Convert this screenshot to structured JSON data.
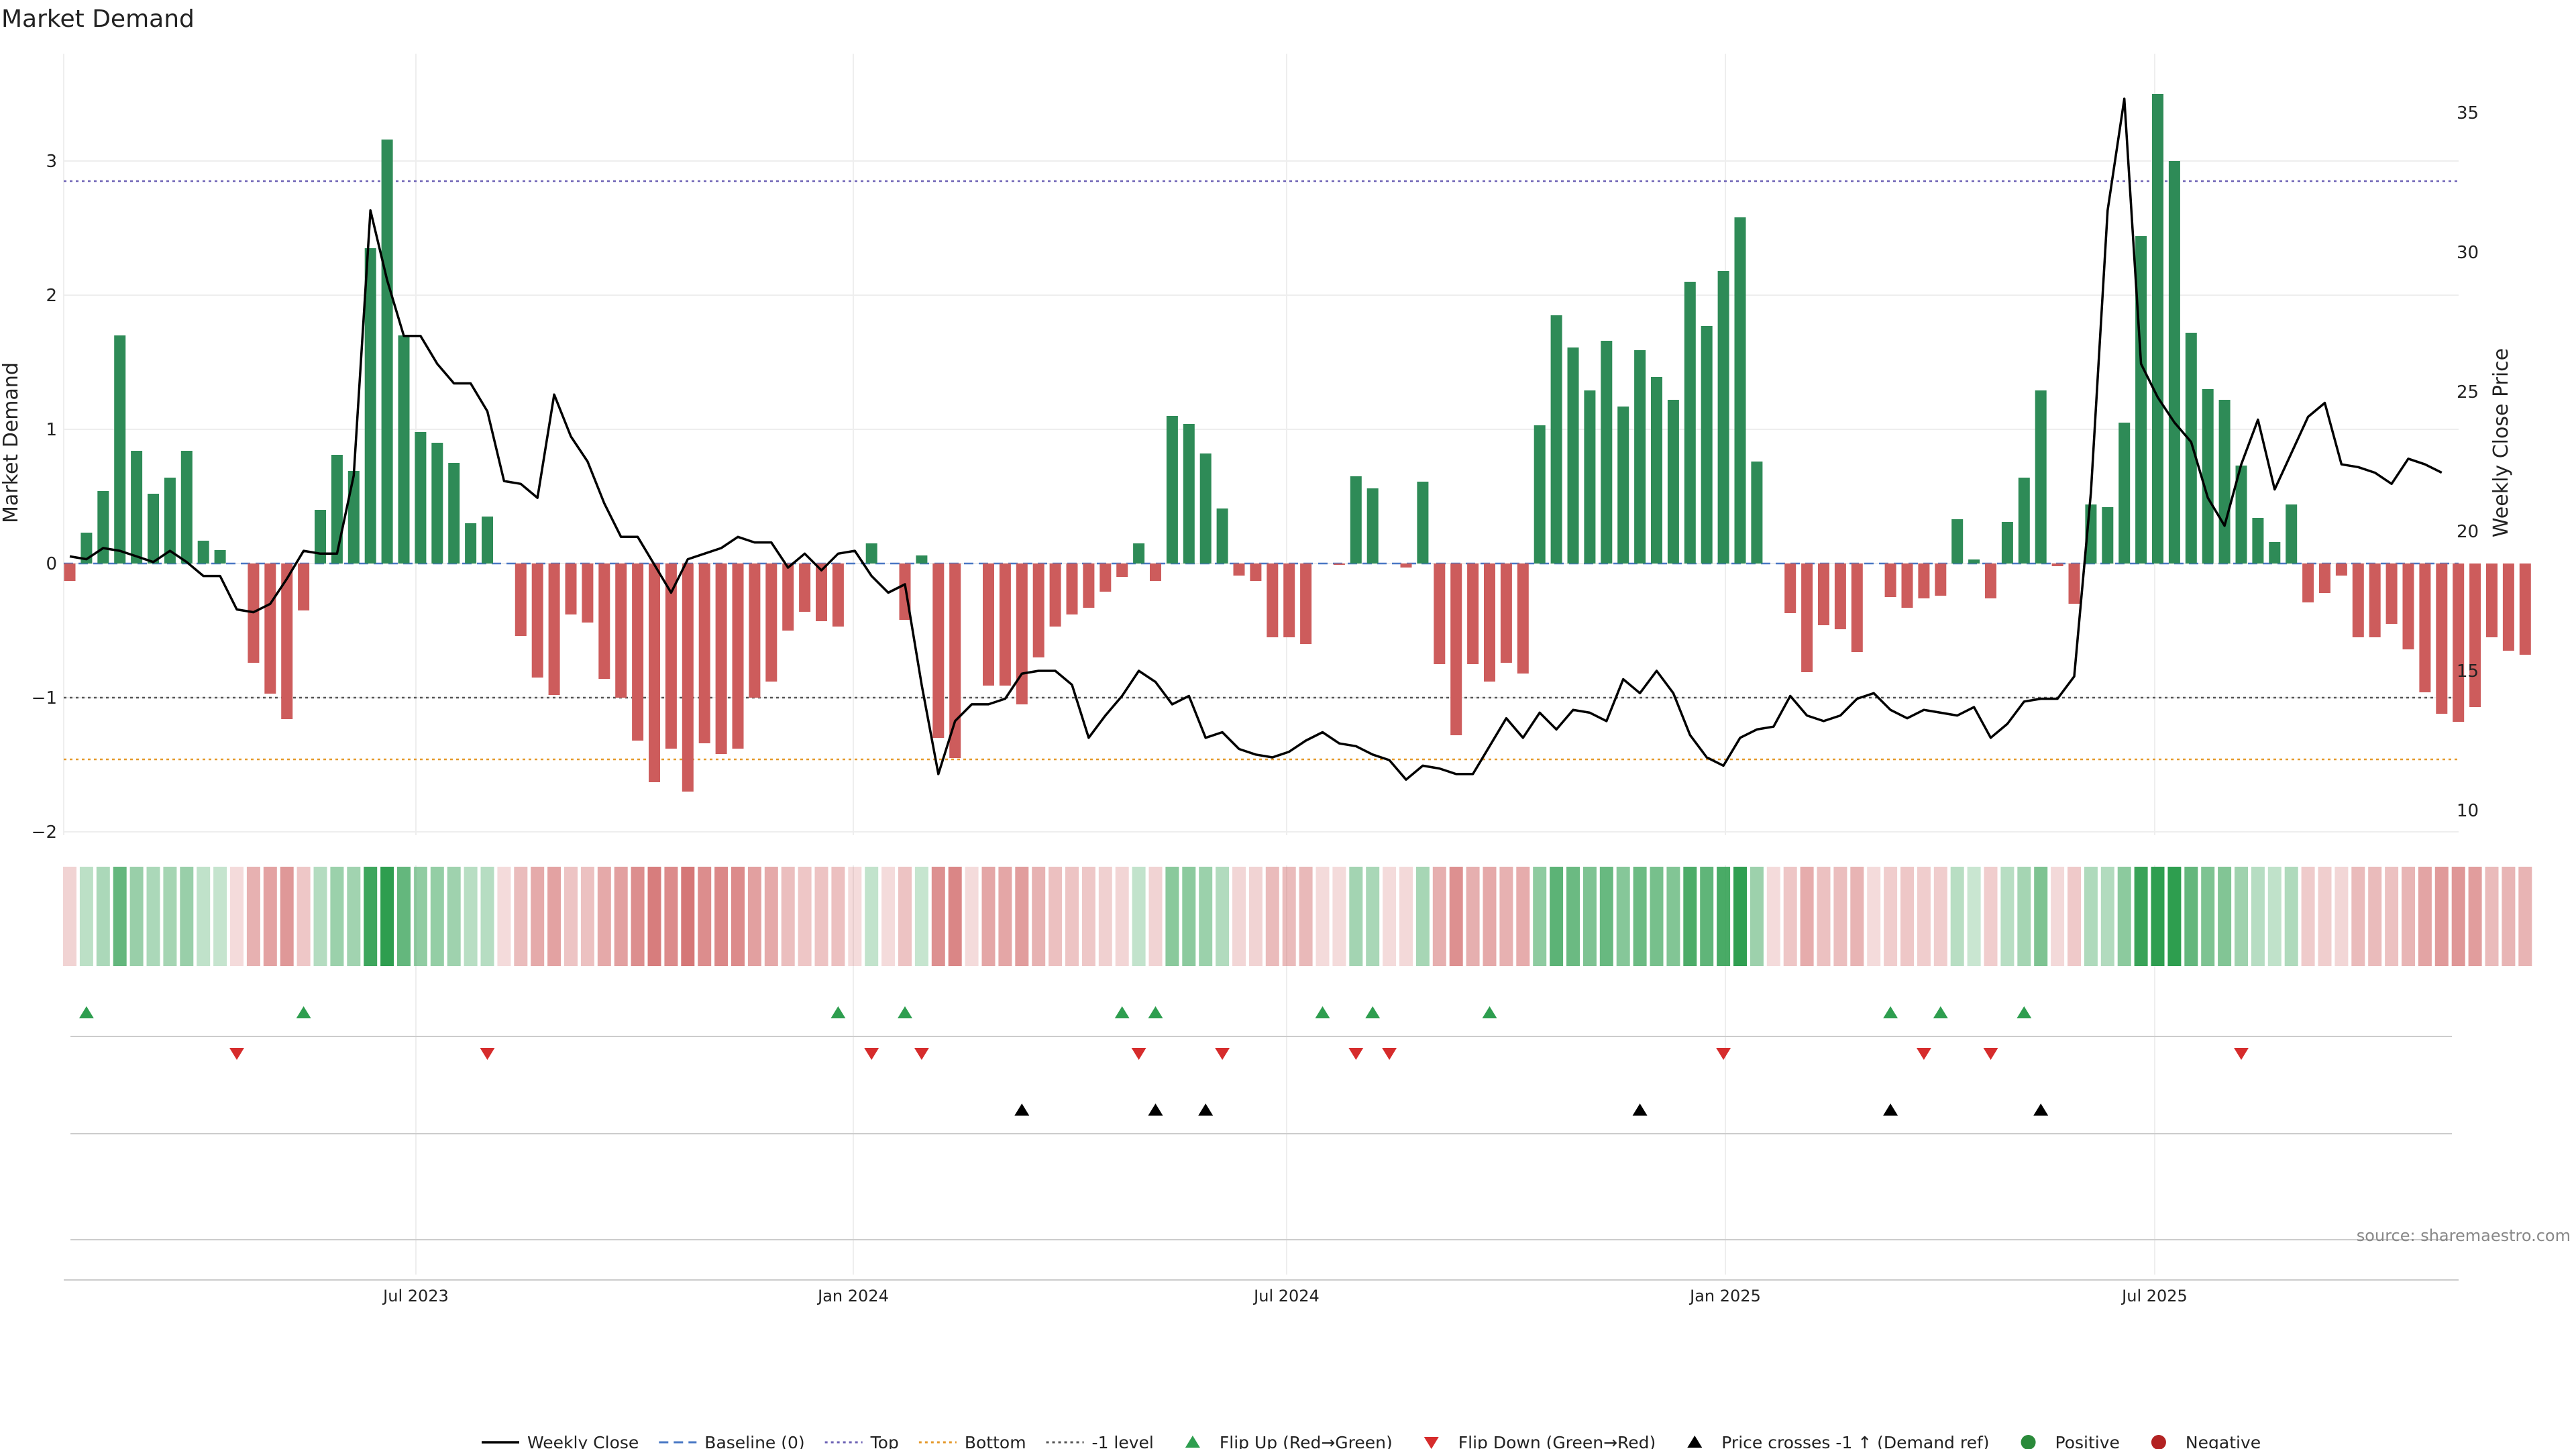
{
  "chart_data": {
    "type": "bar",
    "title": "Market Demand",
    "ylabel_left": "Market Demand",
    "ylabel_right": "Weekly Close Price",
    "source": "source: sharemaestro.com",
    "left_ticks": [
      "3",
      "2",
      "1",
      "0",
      "−1",
      "−2"
    ],
    "left_tick_values": [
      3,
      2,
      1,
      0,
      -1,
      -2
    ],
    "right_ticks": [
      "35",
      "30",
      "25",
      "20",
      "15",
      "10"
    ],
    "right_tick_values": [
      35,
      30,
      25,
      20,
      15,
      10
    ],
    "x_ticks": [
      "Jul 2023",
      "Jan 2024",
      "Jul 2024",
      "Jan 2025",
      "Jul 2025"
    ],
    "levels": {
      "top": 2.85,
      "minus_one": -1.0,
      "bottom": -1.46
    },
    "demand": [
      -0.13,
      0.23,
      0.54,
      1.7,
      0.84,
      0.52,
      0.64,
      0.84,
      0.17,
      0.1,
      0,
      -0.74,
      -0.97,
      -1.16,
      -0.35,
      0.4,
      0.81,
      0.69,
      2.35,
      3.16,
      1.7,
      0.98,
      0.9,
      0.75,
      0.3,
      0.35,
      0,
      -0.54,
      -0.85,
      -0.98,
      -0.38,
      -0.44,
      -0.86,
      -1.0,
      -1.32,
      -1.63,
      -1.38,
      -1.7,
      -1.34,
      -1.42,
      -1.38,
      -1.0,
      -0.88,
      -0.5,
      -0.36,
      -0.43,
      -0.47,
      0,
      0.15,
      0,
      -0.42,
      0.06,
      -1.3,
      -1.45,
      0,
      -0.91,
      -0.91,
      -1.05,
      -0.7,
      -0.47,
      -0.38,
      -0.33,
      -0.21,
      -0.1,
      0.15,
      -0.13,
      1.1,
      1.04,
      0.82,
      0.41,
      -0.09,
      -0.13,
      -0.55,
      -0.55,
      -0.6,
      0,
      -0.01,
      0.65,
      0.56,
      0,
      -0.03,
      0.61,
      -0.75,
      -1.28,
      -0.75,
      -0.88,
      -0.74,
      -0.82,
      1.03,
      1.85,
      1.61,
      1.29,
      1.66,
      1.17,
      1.59,
      1.39,
      1.22,
      2.1,
      1.77,
      2.18,
      2.58,
      0.76,
      0,
      -0.37,
      -0.81,
      -0.46,
      -0.49,
      -0.66,
      0,
      -0.25,
      -0.33,
      -0.26,
      -0.24,
      0.33,
      0.03,
      -0.26,
      0.31,
      0.64,
      1.29,
      -0.02,
      -0.3,
      0.44,
      0.42,
      1.05,
      2.44,
      3.5,
      3.0,
      1.72,
      1.3,
      1.22,
      0.73,
      0.34,
      0.16,
      0.44,
      -0.29,
      -0.22,
      -0.09,
      -0.55,
      -0.55,
      -0.45,
      -0.64,
      -0.96,
      -1.12,
      -1.18,
      -1.07,
      -0.55,
      -0.65,
      -0.68
    ],
    "weekly_close": [
      19.1,
      19.0,
      19.4,
      19.3,
      19.1,
      18.9,
      19.3,
      18.9,
      18.4,
      18.4,
      17.2,
      17.1,
      17.4,
      18.3,
      19.3,
      19.2,
      19.2,
      22.0,
      31.5,
      29.0,
      27.0,
      27.0,
      26.0,
      25.3,
      25.3,
      24.3,
      21.8,
      21.7,
      21.2,
      24.9,
      23.4,
      22.5,
      21.0,
      19.8,
      19.8,
      18.8,
      17.8,
      19.0,
      19.2,
      19.4,
      19.8,
      19.6,
      19.6,
      18.7,
      19.2,
      18.6,
      19.2,
      19.3,
      18.4,
      17.8,
      18.1,
      14.5,
      11.3,
      13.2,
      13.8,
      13.8,
      14.0,
      14.9,
      15.0,
      15.0,
      14.5,
      12.6,
      13.4,
      14.1,
      15.0,
      14.6,
      13.8,
      14.1,
      12.6,
      12.8,
      12.2,
      12.0,
      11.9,
      12.1,
      12.5,
      12.8,
      12.4,
      12.3,
      12.0,
      11.8,
      11.1,
      11.6,
      11.5,
      11.3,
      11.3,
      12.3,
      13.3,
      12.6,
      13.5,
      12.9,
      13.6,
      13.5,
      13.2,
      14.7,
      14.2,
      15.0,
      14.2,
      12.7,
      11.9,
      11.6,
      12.6,
      12.9,
      13.0,
      14.1,
      13.4,
      13.2,
      13.4,
      14.0,
      14.2,
      13.6,
      13.3,
      13.6,
      13.5,
      13.4,
      13.7,
      12.6,
      13.1,
      13.9,
      14.0,
      14.0,
      14.8,
      21.4,
      31.5,
      35.5,
      26.0,
      24.8,
      23.9,
      23.2,
      21.2,
      20.2,
      22.4,
      24.0,
      21.5,
      22.8,
      24.1,
      24.6,
      22.4,
      22.3,
      22.1,
      21.7,
      22.6,
      22.4,
      22.1
    ],
    "flip_up": [
      1,
      14,
      46,
      50,
      63,
      65,
      75,
      78,
      85,
      109,
      112,
      117
    ],
    "flip_down": [
      10,
      25,
      48,
      51,
      64,
      69,
      77,
      79,
      99,
      111,
      115,
      130
    ],
    "price_cross": [
      57,
      65,
      68,
      94,
      109,
      118
    ],
    "legend": [
      {
        "label": "Weekly Close",
        "kind": "line",
        "color": "#000000"
      },
      {
        "label": "Baseline (0)",
        "kind": "dash",
        "color": "#4a78c4"
      },
      {
        "label": "Top",
        "kind": "dot",
        "color": "#6e63b5"
      },
      {
        "label": "Bottom",
        "kind": "dot",
        "color": "#e59a2c"
      },
      {
        "label": "-1 level",
        "kind": "dot",
        "color": "#555555"
      },
      {
        "label": "Flip Up (Red→Green)",
        "kind": "triangle-up",
        "color": "#2e9e4f"
      },
      {
        "label": "Flip Down (Green→Red)",
        "kind": "triangle-down",
        "color": "#d62c2c"
      },
      {
        "label": "Price crosses -1 ↑ (Demand ref)",
        "kind": "triangle-up",
        "color": "#000000"
      },
      {
        "label": "Positive",
        "kind": "circle",
        "color": "#2a8a3a"
      },
      {
        "label": "Negative",
        "kind": "circle",
        "color": "#b22222"
      }
    ],
    "colors": {
      "positive": "#2e8b57",
      "negative": "#cd5c5c",
      "line": "#000000"
    }
  }
}
